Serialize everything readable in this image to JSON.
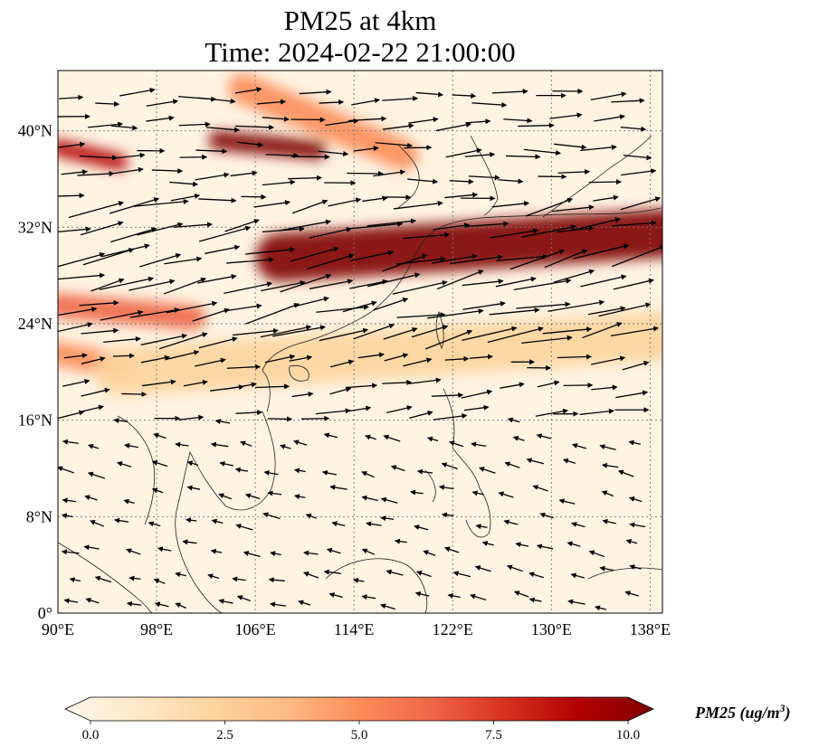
{
  "title": {
    "line1": "PM25 at 4km",
    "line2": "Time: 2024-02-22 21:00:00"
  },
  "map": {
    "projection": "PlateCarree",
    "lon_range": [
      90,
      139
    ],
    "lat_range": [
      0,
      45
    ],
    "gridlines": "dotted",
    "coastlines": true,
    "lon_ticks": [
      {
        "value": 90,
        "label": "90°E"
      },
      {
        "value": 98,
        "label": "98°E"
      },
      {
        "value": 106,
        "label": "106°E"
      },
      {
        "value": 114,
        "label": "114°E"
      },
      {
        "value": 122,
        "label": "122°E"
      },
      {
        "value": 130,
        "label": "130°E"
      },
      {
        "value": 138,
        "label": "138°E"
      }
    ],
    "lat_ticks": [
      {
        "value": 0,
        "label": "0°"
      },
      {
        "value": 8,
        "label": "8°N"
      },
      {
        "value": 16,
        "label": "16°N"
      },
      {
        "value": 24,
        "label": "24°N"
      },
      {
        "value": 32,
        "label": "32°N"
      },
      {
        "value": 40,
        "label": "40°N"
      }
    ]
  },
  "pm25_field": {
    "description_units": "ug/m3",
    "plumes": [
      {
        "lon": [
          103,
          111
        ],
        "lat": [
          39.2,
          38.4
        ],
        "width_deg": 1.6,
        "intensity": 10
      },
      {
        "lon": [
          90,
          95
        ],
        "lat": [
          38.6,
          37.4
        ],
        "width_deg": 1.4,
        "intensity": 9
      },
      {
        "lon": [
          108,
          139
        ],
        "lat": [
          29.5,
          31.5
        ],
        "width_deg": 4.0,
        "intensity": 10
      },
      {
        "lon": [
          90,
          101
        ],
        "lat": [
          25.5,
          24.5
        ],
        "width_deg": 2.0,
        "intensity": 6
      },
      {
        "lon": [
          105,
          118
        ],
        "lat": [
          43.5,
          38.0
        ],
        "width_deg": 2.5,
        "intensity": 5
      },
      {
        "lon": [
          90,
          95
        ],
        "lat": [
          21.5,
          20.5
        ],
        "width_deg": 2.0,
        "intensity": 5
      },
      {
        "lon": [
          95,
          139
        ],
        "lat": [
          20.0,
          23.0
        ],
        "width_deg": 4.0,
        "intensity": 2
      }
    ]
  },
  "wind": {
    "regimes": [
      {
        "lat_min": 34,
        "lat_max": 45,
        "u": 1.0,
        "v": 0.05,
        "speed": 1.0
      },
      {
        "lat_min": 22,
        "lat_max": 34,
        "u": 1.0,
        "v": 0.22,
        "speed": 1.5
      },
      {
        "lat_min": 16,
        "lat_max": 22,
        "u": 1.0,
        "v": 0.12,
        "speed": 0.9
      },
      {
        "lat_min": 0,
        "lat_max": 16,
        "u": -1.0,
        "v": 0.25,
        "speed": 0.45
      }
    ]
  },
  "colorbar": {
    "label_text": "PM25 (ug/m",
    "label_superscript": "3",
    "label_close": ")",
    "min": 0.0,
    "max": 10.0,
    "extend": "both",
    "colormap": "OrRd",
    "stops": [
      "#fff7ec",
      "#fee8c8",
      "#fdd49e",
      "#fdbb84",
      "#fc8d59",
      "#ef6548",
      "#d7301f",
      "#b30000",
      "#7f0000"
    ],
    "ticks": [
      {
        "value": 0.0,
        "label": "0.0"
      },
      {
        "value": 2.5,
        "label": "2.5"
      },
      {
        "value": 5.0,
        "label": "5.0"
      },
      {
        "value": 7.5,
        "label": "7.5"
      },
      {
        "value": 10.0,
        "label": "10.0"
      }
    ]
  }
}
